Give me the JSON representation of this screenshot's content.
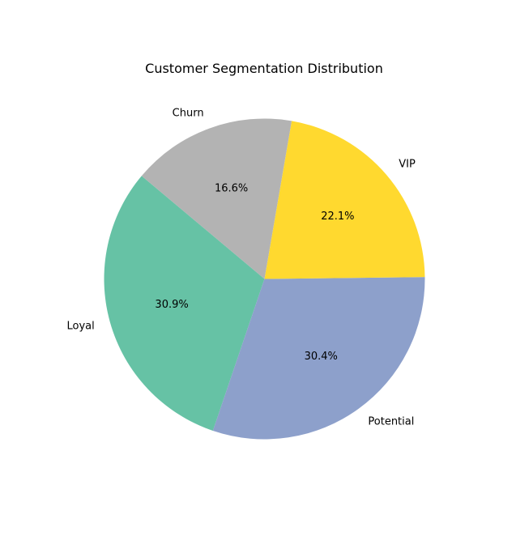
{
  "chart_data": {
    "type": "pie",
    "title": "Customer Segmentation Distribution",
    "start_angle_deg": 140,
    "counterclockwise": true,
    "slices": [
      {
        "label": "Loyal",
        "value": 30.9,
        "pct_label": "30.9%",
        "color": "#66c2a5"
      },
      {
        "label": "Potential",
        "value": 30.4,
        "pct_label": "30.4%",
        "color": "#8da0cb"
      },
      {
        "label": "VIP",
        "value": 22.1,
        "pct_label": "22.1%",
        "color": "#ffd92f"
      },
      {
        "label": "Churn",
        "value": 16.6,
        "pct_label": "16.6%",
        "color": "#b3b3b3"
      }
    ]
  }
}
